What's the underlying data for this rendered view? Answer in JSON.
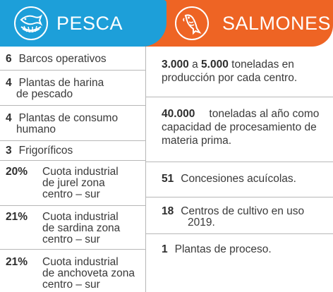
{
  "header": {
    "left_title": "PESCA",
    "left_icon": "fish-net-icon",
    "right_title": "SALMONES",
    "right_icon": "salmon-icon",
    "colors": {
      "pesca": "#1d9fd9",
      "salmones": "#ee6424"
    }
  },
  "pesca": [
    {
      "value": "6",
      "text": "Barcos operativos"
    },
    {
      "value": "4",
      "text_line1": "Plantas de harina",
      "text_line2": "de pescado"
    },
    {
      "value": "4",
      "text_line1": "Plantas de consumo",
      "text_line2": "humano"
    },
    {
      "value": "3",
      "text": "Frigoríficos"
    },
    {
      "value": "20%",
      "lines": [
        "Cuota industrial",
        "de jurel zona",
        "centro – sur"
      ]
    },
    {
      "value": "21%",
      "lines": [
        "Cuota industrial",
        "de sardina zona",
        "centro – sur"
      ]
    },
    {
      "value": "21%",
      "lines": [
        "Cuota industrial",
        "de anchoveta zona",
        "centro – sur"
      ]
    }
  ],
  "salmones": [
    {
      "value_a": "3.000",
      "connector": "a",
      "value_b": "5.000",
      "text_tail": "toneladas en",
      "line2": "producción por cada centro."
    },
    {
      "value": "40.000",
      "text_tail": "toneladas al año como",
      "line2": "capacidad de procesamiento de",
      "line3": "materia prima."
    },
    {
      "value": "51",
      "text": "Concesiones acuícolas."
    },
    {
      "value": "18",
      "text": "Centros de cultivo en uso",
      "line2": "2019."
    },
    {
      "value": "1",
      "text": "Plantas de proceso."
    }
  ]
}
